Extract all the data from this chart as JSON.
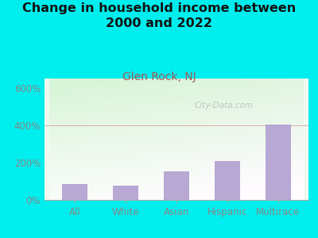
{
  "title": "Change in household income between\n2000 and 2022",
  "subtitle": "Glen Rock, NJ",
  "categories": [
    "All",
    "White",
    "Asian",
    "Hispanic",
    "Multirace"
  ],
  "values": [
    85,
    75,
    155,
    210,
    405
  ],
  "bar_color": "#b8a8d4",
  "background_color": "#00EEEE",
  "title_fontsize": 11.5,
  "subtitle_fontsize": 10,
  "subtitle_color": "#aa5555",
  "title_color": "#111111",
  "tick_color": "#888888",
  "xlabel_color": "#888888",
  "ytick_labels": [
    "0%",
    "200%",
    "400%",
    "600%"
  ],
  "ytick_values": [
    0,
    200,
    400,
    600
  ],
  "ylim": [
    0,
    650
  ],
  "grid_color": "#ddaaaa",
  "watermark": "City-Data.com",
  "watermark_color": "#bbbbbb"
}
